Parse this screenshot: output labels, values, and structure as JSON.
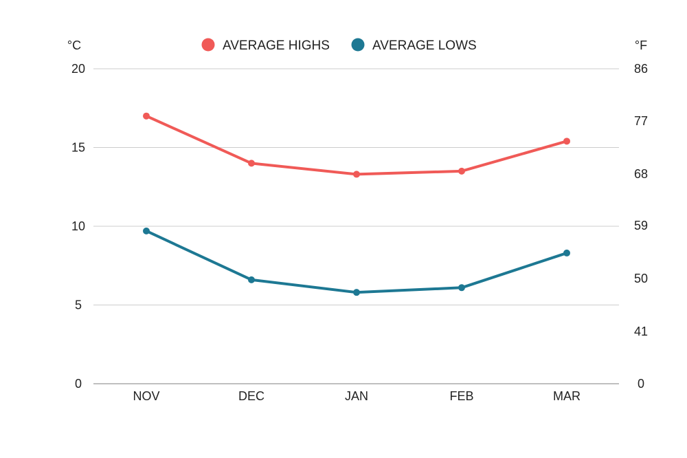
{
  "chart_data": {
    "type": "line",
    "categories": [
      "NOV",
      "DEC",
      "JAN",
      "FEB",
      "MAR"
    ],
    "series": [
      {
        "name": "AVERAGE HIGHS",
        "color": "#f05a57",
        "values": [
          17.0,
          14.0,
          13.3,
          13.5,
          15.4
        ]
      },
      {
        "name": "AVERAGE LOWS",
        "color": "#1d7893",
        "values": [
          9.7,
          6.6,
          5.8,
          6.1,
          8.3
        ]
      }
    ],
    "left_axis": {
      "unit": "°C",
      "ylim": [
        0,
        20
      ],
      "ticks": [
        "0",
        "5",
        "10",
        "15",
        "20"
      ]
    },
    "right_axis": {
      "unit": "°F",
      "ticks": [
        "0",
        "41",
        "50",
        "59",
        "68",
        "77",
        "86"
      ]
    },
    "legend_position": "top-center",
    "grid": true
  }
}
